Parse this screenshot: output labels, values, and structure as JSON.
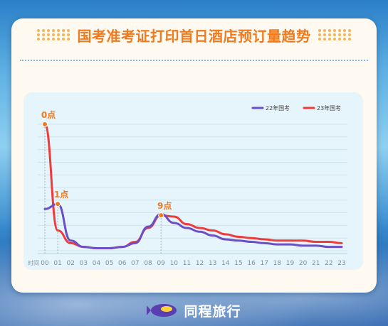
{
  "title": "国考准考证打印首日酒店预订量趋势",
  "brand": {
    "name": "同程旅行",
    "logo_icon": "blimp-logo-icon",
    "color": "#5a3fb0"
  },
  "colors": {
    "accent": "#f07a1e",
    "series_22": "#6a4fc7",
    "series_23": "#ee3c3c"
  },
  "chart_data": {
    "type": "line",
    "x_prefix_label": "时间",
    "categories": [
      "00",
      "01",
      "02",
      "03",
      "04",
      "05",
      "06",
      "07",
      "08",
      "09",
      "10",
      "11",
      "12",
      "13",
      "14",
      "15",
      "16",
      "17",
      "18",
      "19",
      "20",
      "21",
      "22",
      "23"
    ],
    "ylim": [
      0,
      100
    ],
    "grid": true,
    "legend_position": "top-right",
    "series": [
      {
        "name": "22年国考",
        "values": [
          33,
          37,
          8,
          3,
          2,
          2,
          3,
          6,
          19,
          29,
          22,
          18,
          15,
          12,
          9,
          8,
          7,
          6,
          5,
          5,
          4,
          4,
          3,
          3
        ]
      },
      {
        "name": "23年国考",
        "values": [
          100,
          16,
          6,
          3,
          2,
          2,
          3,
          7,
          18,
          28,
          27,
          21,
          18,
          16,
          13,
          11,
          10,
          9,
          8,
          8,
          8,
          7,
          7,
          6
        ]
      }
    ],
    "annotations": [
      {
        "label": "0点",
        "x": "00",
        "series": "23年国考",
        "value": 100
      },
      {
        "label": "1点",
        "x": "01",
        "series": "22年国考",
        "value": 37
      },
      {
        "label": "9点",
        "x": "09",
        "series": "23年国考",
        "value": 28
      }
    ]
  }
}
